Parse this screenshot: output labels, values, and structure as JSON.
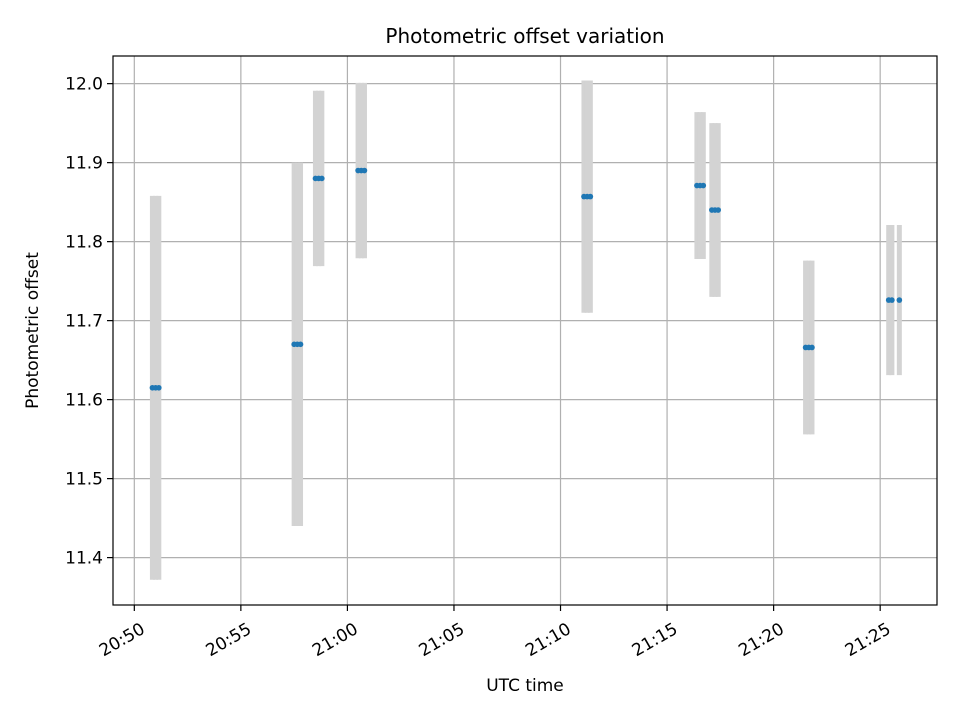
{
  "chart_data": {
    "type": "scatter",
    "title": "Photometric offset variation",
    "xlabel": "UTC time",
    "ylabel": "Photometric offset",
    "x_axis_type": "time",
    "xlim": [
      "20:49:00",
      "21:27:40"
    ],
    "ylim": [
      11.34,
      12.035
    ],
    "x_ticks": [
      "20:50",
      "20:55",
      "21:00",
      "21:05",
      "21:10",
      "21:15",
      "21:20",
      "21:25"
    ],
    "y_ticks": [
      11.4,
      11.5,
      11.6,
      11.7,
      11.8,
      11.9,
      12.0
    ],
    "grid": true,
    "colors": {
      "point": "#1f77b4",
      "errorbar": "#d3d3d3",
      "grid": "#b0b0b0"
    },
    "points": [
      {
        "x": "20:50:51",
        "y": 11.615,
        "yerr": 0.243
      },
      {
        "x": "20:51:00",
        "y": 11.615,
        "yerr": 0.243
      },
      {
        "x": "20:51:09",
        "y": 11.615,
        "yerr": 0.243
      },
      {
        "x": "20:57:30",
        "y": 11.67,
        "yerr": 0.23
      },
      {
        "x": "20:57:39",
        "y": 11.67,
        "yerr": 0.23
      },
      {
        "x": "20:57:48",
        "y": 11.67,
        "yerr": 0.23
      },
      {
        "x": "20:58:30",
        "y": 11.88,
        "yerr": 0.111
      },
      {
        "x": "20:58:39",
        "y": 11.88,
        "yerr": 0.111
      },
      {
        "x": "20:58:48",
        "y": 11.88,
        "yerr": 0.111
      },
      {
        "x": "21:00:30",
        "y": 11.89,
        "yerr": 0.111
      },
      {
        "x": "21:00:39",
        "y": 11.89,
        "yerr": 0.111
      },
      {
        "x": "21:00:48",
        "y": 11.89,
        "yerr": 0.111
      },
      {
        "x": "21:11:06",
        "y": 11.857,
        "yerr": 0.147
      },
      {
        "x": "21:11:15",
        "y": 11.857,
        "yerr": 0.147
      },
      {
        "x": "21:11:24",
        "y": 11.857,
        "yerr": 0.147
      },
      {
        "x": "21:16:24",
        "y": 11.871,
        "yerr": 0.093
      },
      {
        "x": "21:16:33",
        "y": 11.871,
        "yerr": 0.093
      },
      {
        "x": "21:16:42",
        "y": 11.871,
        "yerr": 0.093
      },
      {
        "x": "21:17:06",
        "y": 11.84,
        "yerr": 0.11
      },
      {
        "x": "21:17:15",
        "y": 11.84,
        "yerr": 0.11
      },
      {
        "x": "21:17:24",
        "y": 11.84,
        "yerr": 0.11
      },
      {
        "x": "21:21:30",
        "y": 11.666,
        "yerr": 0.11
      },
      {
        "x": "21:21:39",
        "y": 11.666,
        "yerr": 0.11
      },
      {
        "x": "21:21:48",
        "y": 11.666,
        "yerr": 0.11
      },
      {
        "x": "21:25:24",
        "y": 11.726,
        "yerr": 0.095
      },
      {
        "x": "21:25:33",
        "y": 11.726,
        "yerr": 0.095
      },
      {
        "x": "21:25:54",
        "y": 11.726,
        "yerr": 0.095
      }
    ]
  }
}
